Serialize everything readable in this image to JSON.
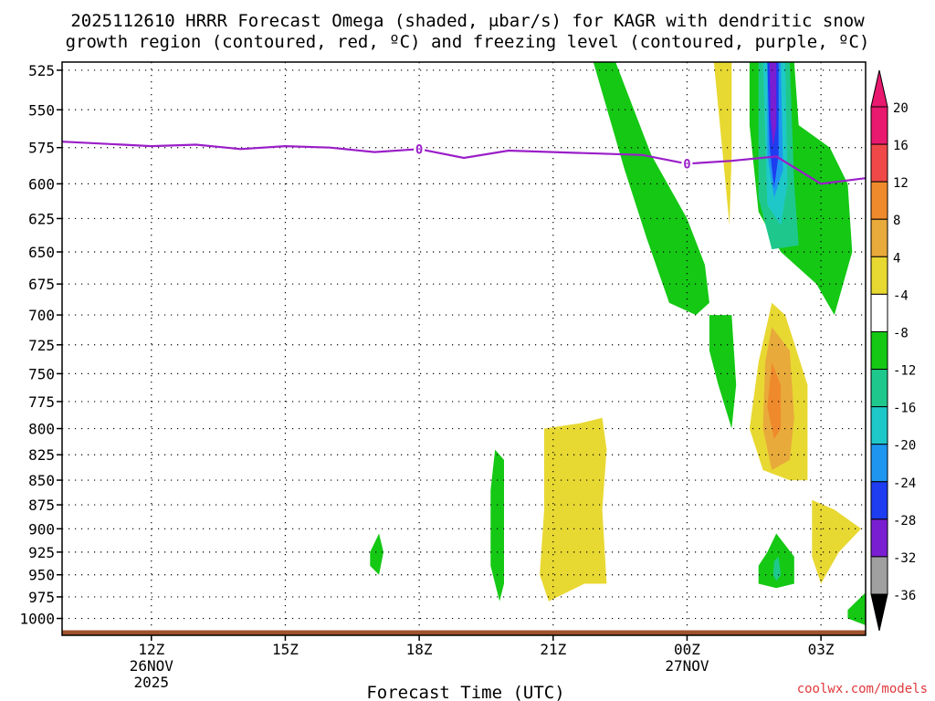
{
  "chart_data": {
    "type": "heatmap",
    "title_lines": [
      "2025112610 HRRR Forecast Omega (shaded, μbar/s) for KAGR with dendritic snow",
      "growth region (contoured, red, ºC) and freezing level (contoured, purple, ºC)"
    ],
    "xlabel": "Forecast Time (UTC)",
    "ylabel": "",
    "x_ticks": [
      {
        "hour": 12,
        "label": "12Z",
        "sub1": "26NOV",
        "sub2": "2025"
      },
      {
        "hour": 15,
        "label": "15Z",
        "sub1": "",
        "sub2": ""
      },
      {
        "hour": 18,
        "label": "18Z",
        "sub1": "",
        "sub2": ""
      },
      {
        "hour": 21,
        "label": "21Z",
        "sub1": "",
        "sub2": ""
      },
      {
        "hour": 24,
        "label": "00Z",
        "sub1": "27NOV",
        "sub2": ""
      },
      {
        "hour": 27,
        "label": "03Z",
        "sub1": "",
        "sub2": ""
      }
    ],
    "x_range_hours": [
      10,
      28
    ],
    "y_ticks": [
      525,
      550,
      575,
      600,
      625,
      650,
      675,
      700,
      725,
      750,
      775,
      800,
      825,
      850,
      875,
      900,
      925,
      950,
      975,
      1000
    ],
    "y_range_hPa": [
      520,
      1020
    ],
    "y_scale": "log-pressure",
    "grid": true,
    "colorbar": {
      "levels": [
        {
          "label": "20",
          "color": "#e8196e"
        },
        {
          "label": "16",
          "color": "#f04848"
        },
        {
          "label": "12",
          "color": "#ef8a2c"
        },
        {
          "label": "8",
          "color": "#e8aa3a"
        },
        {
          "label": "4",
          "color": "#e8d832"
        },
        {
          "label": "-4",
          "color": "#ffffff"
        },
        {
          "label": "-8",
          "color": "#14c814"
        },
        {
          "label": "-12",
          "color": "#1ec88c"
        },
        {
          "label": "-16",
          "color": "#1ec8c8"
        },
        {
          "label": "-20",
          "color": "#1e96f0"
        },
        {
          "label": "-24",
          "color": "#1e3cf0"
        },
        {
          "label": "-28",
          "color": "#7a1ed2"
        },
        {
          "label": "-32",
          "color": "#9614c8"
        },
        {
          "label": "-36",
          "color": "#a0a0a0"
        }
      ],
      "top_arrow_color": "#e8196e",
      "bottom_arrow_color": "#000000"
    },
    "freezing_level": {
      "label": "0",
      "color": "#9a1ec8",
      "points": [
        [
          10,
          571
        ],
        [
          12,
          574
        ],
        [
          13,
          573
        ],
        [
          14,
          576
        ],
        [
          15,
          574
        ],
        [
          16,
          575
        ],
        [
          17,
          578
        ],
        [
          18,
          576
        ],
        [
          19,
          582
        ],
        [
          20,
          577
        ],
        [
          22,
          579
        ],
        [
          23,
          580
        ],
        [
          24,
          586
        ],
        [
          25,
          584
        ],
        [
          26,
          581
        ],
        [
          27,
          600
        ],
        [
          28,
          596
        ]
      ]
    },
    "omega_regions": [
      {
        "value": -8,
        "color": "#14c814",
        "points": [
          [
            21.9,
            520
          ],
          [
            22.4,
            520
          ],
          [
            23.2,
            580
          ],
          [
            24.0,
            625
          ],
          [
            24.4,
            660
          ],
          [
            24.5,
            690
          ],
          [
            24.2,
            700
          ],
          [
            23.6,
            690
          ],
          [
            23.1,
            640
          ],
          [
            22.6,
            590
          ]
        ]
      },
      {
        "value": 4,
        "color": "#e8d832",
        "points": [
          [
            24.6,
            520
          ],
          [
            25.0,
            520
          ],
          [
            25.0,
            580
          ],
          [
            24.95,
            630
          ],
          [
            24.8,
            580
          ]
        ]
      },
      {
        "value": -8,
        "color": "#14c814",
        "points": [
          [
            25.4,
            520
          ],
          [
            26.4,
            520
          ],
          [
            26.5,
            560
          ],
          [
            27.2,
            575
          ],
          [
            27.6,
            600
          ],
          [
            27.7,
            650
          ],
          [
            27.3,
            700
          ],
          [
            26.9,
            675
          ],
          [
            26.1,
            650
          ],
          [
            25.6,
            620
          ],
          [
            25.4,
            560
          ]
        ]
      },
      {
        "value": -12,
        "color": "#1ec88c",
        "points": [
          [
            25.6,
            520
          ],
          [
            26.3,
            520
          ],
          [
            26.4,
            600
          ],
          [
            26.5,
            645
          ],
          [
            25.9,
            648
          ],
          [
            25.6,
            610
          ]
        ]
      },
      {
        "value": -16,
        "color": "#1ec8c8",
        "points": [
          [
            25.7,
            520
          ],
          [
            26.2,
            520
          ],
          [
            26.25,
            600
          ],
          [
            26.1,
            630
          ],
          [
            25.8,
            615
          ]
        ]
      },
      {
        "value": -20,
        "color": "#1e96f0",
        "points": [
          [
            25.8,
            520
          ],
          [
            26.1,
            520
          ],
          [
            26.15,
            590
          ],
          [
            25.95,
            610
          ],
          [
            25.8,
            580
          ]
        ]
      },
      {
        "value": -24,
        "color": "#1e3cf0",
        "points": [
          [
            25.8,
            520
          ],
          [
            26.05,
            520
          ],
          [
            26.05,
            580
          ],
          [
            25.95,
            603
          ],
          [
            25.85,
            575
          ]
        ]
      },
      {
        "value": -28,
        "color": "#7a1ed2",
        "points": [
          [
            25.85,
            520
          ],
          [
            26.0,
            520
          ],
          [
            26.0,
            560
          ],
          [
            25.93,
            575
          ],
          [
            25.87,
            555
          ]
        ]
      },
      {
        "value": -8,
        "color": "#14c814",
        "points": [
          [
            24.5,
            700
          ],
          [
            25.0,
            700
          ],
          [
            25.1,
            760
          ],
          [
            25.0,
            800
          ],
          [
            24.7,
            760
          ],
          [
            24.5,
            730
          ]
        ]
      },
      {
        "value": 4,
        "color": "#e8d832",
        "points": [
          [
            25.9,
            690
          ],
          [
            26.2,
            700
          ],
          [
            26.7,
            760
          ],
          [
            26.7,
            850
          ],
          [
            26.3,
            850
          ],
          [
            25.7,
            840
          ],
          [
            25.4,
            800
          ],
          [
            25.6,
            740
          ]
        ]
      },
      {
        "value": 8,
        "color": "#e8aa3a",
        "points": [
          [
            25.9,
            710
          ],
          [
            26.3,
            730
          ],
          [
            26.4,
            790
          ],
          [
            26.3,
            830
          ],
          [
            25.9,
            840
          ],
          [
            25.7,
            800
          ],
          [
            25.75,
            740
          ]
        ]
      },
      {
        "value": 12,
        "color": "#ef8a2c",
        "points": [
          [
            25.9,
            740
          ],
          [
            26.1,
            760
          ],
          [
            26.1,
            800
          ],
          [
            25.95,
            810
          ],
          [
            25.8,
            780
          ]
        ]
      },
      {
        "value": 4,
        "color": "#e8d832",
        "points": [
          [
            20.8,
            800
          ],
          [
            21.6,
            795
          ],
          [
            22.1,
            790
          ],
          [
            22.2,
            820
          ],
          [
            22.1,
            880
          ],
          [
            22.2,
            960
          ],
          [
            21.7,
            960
          ],
          [
            20.9,
            980
          ],
          [
            20.7,
            950
          ],
          [
            20.8,
            880
          ]
        ]
      },
      {
        "value": -8,
        "color": "#14c814",
        "points": [
          [
            19.7,
            820
          ],
          [
            19.9,
            830
          ],
          [
            19.9,
            900
          ],
          [
            19.9,
            960
          ],
          [
            19.8,
            980
          ],
          [
            19.6,
            940
          ],
          [
            19.6,
            860
          ]
        ]
      },
      {
        "value": -8,
        "color": "#14c814",
        "points": [
          [
            16.9,
            925
          ],
          [
            17.1,
            905
          ],
          [
            17.2,
            925
          ],
          [
            17.1,
            950
          ],
          [
            16.9,
            940
          ]
        ]
      },
      {
        "value": -8,
        "color": "#14c814",
        "points": [
          [
            25.8,
            925
          ],
          [
            26.0,
            905
          ],
          [
            26.4,
            930
          ],
          [
            26.4,
            960
          ],
          [
            26.0,
            965
          ],
          [
            25.6,
            960
          ],
          [
            25.6,
            940
          ]
        ]
      },
      {
        "value": -12,
        "color": "#1ec88c",
        "points": [
          [
            25.95,
            935
          ],
          [
            26.05,
            930
          ],
          [
            26.1,
            950
          ],
          [
            26.0,
            957
          ],
          [
            25.93,
            950
          ]
        ]
      },
      {
        "value": 4,
        "color": "#e8d832",
        "points": [
          [
            26.8,
            870
          ],
          [
            27.3,
            880
          ],
          [
            27.9,
            900
          ],
          [
            27.4,
            925
          ],
          [
            27.0,
            960
          ],
          [
            26.8,
            930
          ]
        ]
      },
      {
        "value": -8,
        "color": "#14c814",
        "points": [
          [
            27.6,
            990
          ],
          [
            28.0,
            970
          ],
          [
            28.0,
            1008
          ],
          [
            27.6,
            1000
          ]
        ]
      }
    ],
    "terrain_surface_hPa": 1014,
    "terrain_color": "#a0522d",
    "credit": "coolwx.com/models"
  }
}
